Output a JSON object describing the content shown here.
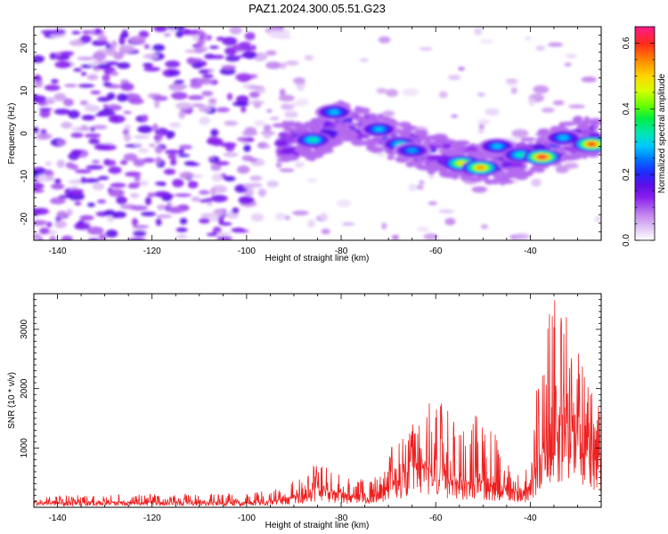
{
  "title": "PAZ1.2024.300.05.51.G23",
  "chart_data": [
    {
      "type": "heatmap",
      "xlabel": "Height of straight line (km)",
      "ylabel": "Frequency (Hz)",
      "xlim": [
        -145,
        -25
      ],
      "ylim": [
        -25,
        25
      ],
      "xticks": [
        "-140",
        "-120",
        "-100",
        "-80",
        "-60",
        "-40"
      ],
      "yticks": [
        "-20",
        "-10",
        "0",
        "10",
        "20"
      ],
      "colorbar": {
        "label": "Normalized spectral amplitude",
        "range": [
          0,
          0.65
        ],
        "ticks": [
          "0.0",
          "0.2",
          "0.4",
          "0.6"
        ],
        "colormap": [
          "#ffffff",
          "#e6cff7",
          "#c285ee",
          "#8a1ff0",
          "#5a0fe8",
          "#1c2cff",
          "#0077ff",
          "#00c8ff",
          "#00e6b4",
          "#00ee44",
          "#66ff00",
          "#d6ff00",
          "#ffd400",
          "#ff8c00",
          "#ff2a1c",
          "#ff1a8c"
        ]
      },
      "ridge": {
        "description_points_x": [
          -93,
          -86,
          -80,
          -75,
          -70,
          -65,
          -60,
          -55,
          -50,
          -45,
          -40,
          -35,
          -30,
          -26
        ],
        "description_points_y": [
          -2,
          -2,
          3,
          1,
          -1,
          -3,
          -5,
          -6,
          -7,
          -7,
          -5,
          -3,
          -1,
          -1
        ],
        "peaks": [
          {
            "x": -86,
            "y": -1.5,
            "amp": 0.35
          },
          {
            "x": -81.5,
            "y": 5,
            "amp": 0.3
          },
          {
            "x": -72,
            "y": 1,
            "amp": 0.3
          },
          {
            "x": -67.5,
            "y": -2.5,
            "amp": 0.33
          },
          {
            "x": -65,
            "y": -4,
            "amp": 0.28
          },
          {
            "x": -54.5,
            "y": -7,
            "amp": 0.5
          },
          {
            "x": -50.5,
            "y": -8,
            "amp": 0.55
          },
          {
            "x": -47,
            "y": -3,
            "amp": 0.3
          },
          {
            "x": -42,
            "y": -5,
            "amp": 0.35
          },
          {
            "x": -37.5,
            "y": -5.5,
            "amp": 0.62
          },
          {
            "x": -33,
            "y": -1,
            "amp": 0.3
          },
          {
            "x": -27,
            "y": -2.5,
            "amp": 0.6
          }
        ]
      }
    },
    {
      "type": "line",
      "xlabel": "Height of straight line (km)",
      "ylabel": "SNR (10 * v/v)",
      "xlim": [
        -145,
        -25
      ],
      "ylim": [
        0,
        3600
      ],
      "xticks": [
        "-140",
        "-120",
        "-100",
        "-80",
        "-60",
        "-40"
      ],
      "yticks": [
        "1000",
        "2000",
        "3000"
      ],
      "line_color": "#ee2020",
      "envelope": {
        "x": [
          -145,
          -100,
          -95,
          -88,
          -86,
          -80,
          -78,
          -72,
          -70,
          -65,
          -64,
          -60,
          -58,
          -55,
          -50,
          -45,
          -43,
          -40,
          -38,
          -35,
          -33,
          -31,
          -28,
          -25
        ],
        "baseline": [
          80,
          80,
          100,
          180,
          300,
          250,
          180,
          200,
          350,
          600,
          700,
          600,
          500,
          400,
          400,
          300,
          250,
          250,
          900,
          1100,
          1500,
          1400,
          900,
          700
        ],
        "peak": [
          200,
          240,
          300,
          500,
          790,
          600,
          450,
          550,
          1000,
          1300,
          2000,
          1800,
          1750,
          1250,
          1700,
          800,
          620,
          700,
          2600,
          3650,
          3650,
          2900,
          2300,
          1600
        ]
      }
    }
  ]
}
